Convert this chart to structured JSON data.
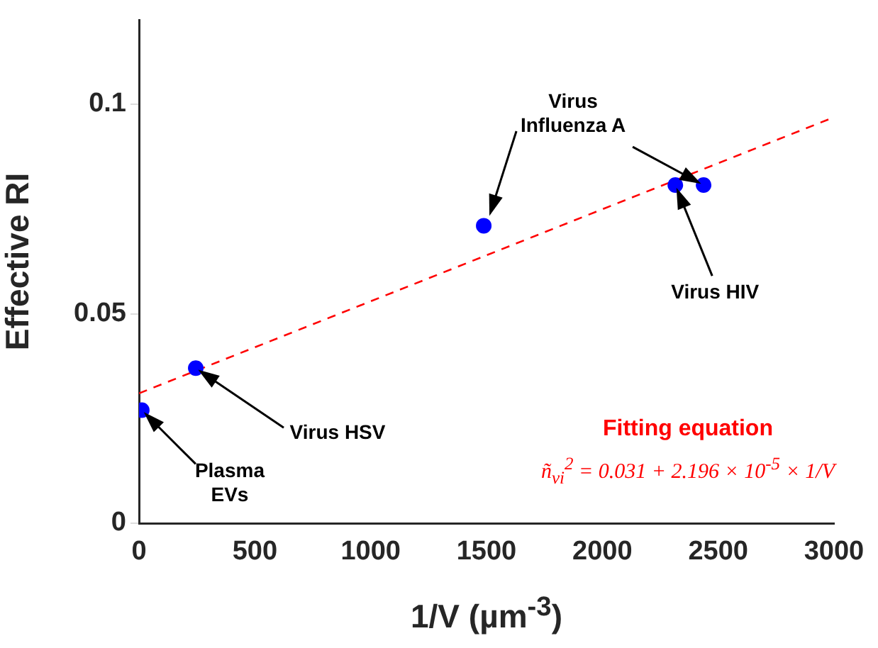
{
  "chart_data": {
    "type": "scatter",
    "xlabel": "1/V (µm$^{-3}$)",
    "ylabel": "Effective RI",
    "xlim": [
      0,
      3000
    ],
    "xticks": [
      0,
      500,
      1000,
      1500,
      2000,
      2500,
      3000
    ],
    "ylim": [
      0,
      0.12
    ],
    "yticks": [
      0,
      0.05,
      {
        "value": 0.1,
        "label": "0.1"
      }
    ],
    "grid": false,
    "legend": false,
    "series": [
      {
        "type": "scatter",
        "color": "#0000ff",
        "marker": "circle",
        "x": [
          12,
          245,
          1488,
          2315,
          2437
        ],
        "values": [
          0.027,
          0.037,
          0.071,
          0.0807,
          0.0807
        ]
      },
      {
        "type": "line",
        "color": "#ff0000",
        "line_style": "dashed",
        "marker": "none",
        "x": [
          0,
          3000
        ],
        "values": [
          0.031,
          0.0969
        ]
      }
    ],
    "annotations": [
      {
        "text": "Plasma EVs",
        "x": 12,
        "y": 0.027
      },
      {
        "text": "Virus HSV",
        "x": 245,
        "y": 0.037
      },
      {
        "text": "Virus Influenza A",
        "x": 2437,
        "y": 0.0807
      },
      {
        "text": "Virus HIV",
        "x": 2315,
        "y": 0.0807
      },
      "Fitting equation",
      "ñ$_{vi}$$^{2}$ = 0.031 + 2.196 × 10$^{-5}$ × 1/V"
    ]
  }
}
